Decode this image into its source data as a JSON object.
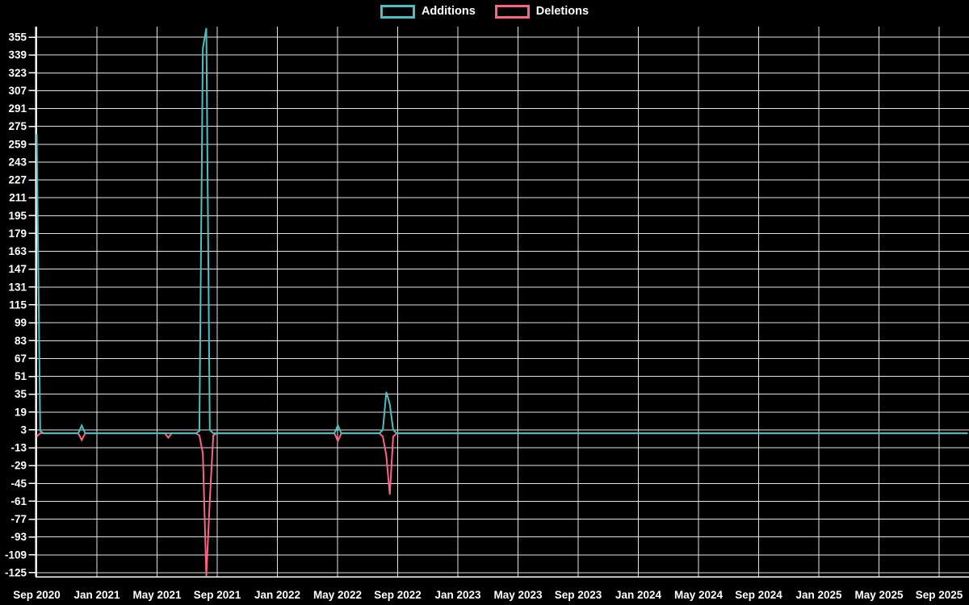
{
  "page": {
    "background": "#000000",
    "text_color": "#ffffff",
    "grid_color": "#e3e3e3"
  },
  "legend": {
    "items": [
      {
        "label": "Additions",
        "color": "#4bc0c0"
      },
      {
        "label": "Deletions",
        "color": "#ff6384"
      }
    ]
  },
  "chart_data": {
    "type": "line",
    "title": "",
    "legend_position": "top-center",
    "background": "#000000",
    "grid": true,
    "x_ticks": [
      "Sep 2020",
      "Jan 2021",
      "May 2021",
      "Sep 2021",
      "Jan 2022",
      "May 2022",
      "Sep 2022",
      "Jan 2023",
      "May 2023",
      "Sep 2023",
      "Jan 2024",
      "May 2024",
      "Sep 2024",
      "Jan 2025",
      "May 2025",
      "Sep 2025"
    ],
    "x_unit": "weekly points, week 0 = Sep 2020",
    "weeks_per_tick": 17.383,
    "total_weeks": 269,
    "y_ticks": [
      355,
      339,
      323,
      307,
      291,
      275,
      259,
      243,
      227,
      211,
      195,
      179,
      163,
      147,
      131,
      115,
      99,
      83,
      67,
      51,
      35,
      19,
      3,
      -13,
      -29,
      -45,
      -61,
      -77,
      -93,
      -109,
      -125
    ],
    "ylim": [
      -129,
      364
    ],
    "series": [
      {
        "name": "Additions",
        "color": "#4bc0c0",
        "default": 0,
        "points": {
          "0": 268,
          "1": 2,
          "13": 7,
          "14": 0,
          "47": 2,
          "48": 345,
          "49": 363,
          "50": 3,
          "51": 0,
          "87": 7,
          "88": 0,
          "100": 3,
          "101": 37,
          "102": 26,
          "103": 3,
          "104": 0
        }
      },
      {
        "name": "Deletions",
        "color": "#ff6384",
        "default": 0,
        "points": {
          "0": -3,
          "1": 0,
          "13": -6,
          "14": 0,
          "38": -4,
          "39": 0,
          "47": -2,
          "48": -18,
          "49": -128,
          "50": -60,
          "51": -2,
          "52": 0,
          "87": -7,
          "88": 0,
          "100": -3,
          "101": -20,
          "102": -55,
          "103": -3,
          "104": 0
        }
      }
    ]
  }
}
